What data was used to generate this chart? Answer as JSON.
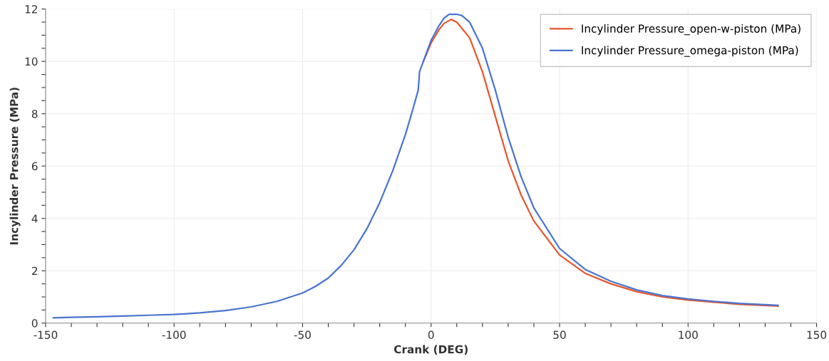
{
  "chart_data": {
    "type": "line",
    "xlabel": "Crank (DEG)",
    "ylabel": "Incylinder Pressure (MPa)",
    "xlim": [
      -150,
      150
    ],
    "ylim": [
      0,
      12
    ],
    "xticks": [
      -150,
      {
        "value": -140,
        "label": null
      },
      {
        "value": -130,
        "label": null
      },
      {
        "value": -120,
        "label": null
      },
      {
        "value": -110,
        "label": null
      },
      -100,
      {
        "value": -90,
        "label": null
      },
      {
        "value": -80,
        "label": null
      },
      {
        "value": -70,
        "label": null
      },
      {
        "value": -60,
        "label": null
      },
      -50,
      {
        "value": -40,
        "label": null
      },
      {
        "value": -30,
        "label": null
      },
      {
        "value": -20,
        "label": null
      },
      {
        "value": -10,
        "label": null
      },
      0,
      {
        "value": 10,
        "label": null
      },
      {
        "value": 20,
        "label": null
      },
      {
        "value": 30,
        "label": null
      },
      {
        "value": 40,
        "label": null
      },
      50,
      {
        "value": 60,
        "label": null
      },
      {
        "value": 70,
        "label": null
      },
      {
        "value": 80,
        "label": null
      },
      {
        "value": 90,
        "label": null
      },
      100,
      {
        "value": 110,
        "label": null
      },
      {
        "value": 120,
        "label": null
      },
      {
        "value": 130,
        "label": null
      },
      {
        "value": 140,
        "label": null
      },
      150
    ],
    "yticks": [
      0,
      {
        "value": 0.5,
        "label": null
      },
      {
        "value": 1,
        "label": null
      },
      {
        "value": 1.5,
        "label": null
      },
      2,
      {
        "value": 2.5,
        "label": null
      },
      {
        "value": 3,
        "label": null
      },
      {
        "value": 3.5,
        "label": null
      },
      4,
      {
        "value": 4.5,
        "label": null
      },
      {
        "value": 5,
        "label": null
      },
      {
        "value": 5.5,
        "label": null
      },
      6,
      {
        "value": 6.5,
        "label": null
      },
      {
        "value": 7,
        "label": null
      },
      {
        "value": 7.5,
        "label": null
      },
      8,
      {
        "value": 8.5,
        "label": null
      },
      {
        "value": 9,
        "label": null
      },
      {
        "value": 9.5,
        "label": null
      },
      10,
      {
        "value": 10.5,
        "label": null
      },
      {
        "value": 11,
        "label": null
      },
      {
        "value": 11.5,
        "label": null
      },
      12
    ],
    "grid": true,
    "legend": "top right",
    "marker": "none",
    "line_style": "solid",
    "series": [
      {
        "name": "Incylinder Pressure_open-w-piston (MPa)",
        "color": "#e8562a",
        "x": [
          -3,
          0,
          3,
          5,
          7.8,
          10,
          15,
          20,
          25,
          30,
          35,
          40,
          50,
          60,
          70,
          80,
          90,
          100,
          110,
          120,
          135
        ],
        "values": [
          10.0,
          10.7,
          11.2,
          11.45,
          11.6,
          11.5,
          10.9,
          9.6,
          7.9,
          6.2,
          4.9,
          3.9,
          2.6,
          1.9,
          1.5,
          1.2,
          1.0,
          0.88,
          0.8,
          0.72,
          0.65
        ]
      },
      {
        "name": "Incylinder Pressure_omega-piston (MPa)",
        "color": "#4a74d0",
        "x": [
          -147,
          -140,
          -130,
          -120,
          -110,
          -100,
          -90,
          -80,
          -70,
          -60,
          -50,
          -45,
          -40,
          -35,
          -30,
          -25,
          -20,
          -15,
          -10,
          -7,
          -5,
          -4.5,
          -3,
          0,
          3,
          5,
          7,
          10,
          12,
          15,
          20,
          25,
          30,
          35,
          40,
          50,
          60,
          70,
          80,
          90,
          100,
          110,
          120,
          135
        ],
        "values": [
          0.2,
          0.22,
          0.24,
          0.27,
          0.3,
          0.33,
          0.39,
          0.48,
          0.62,
          0.83,
          1.15,
          1.4,
          1.72,
          2.2,
          2.8,
          3.6,
          4.6,
          5.8,
          7.2,
          8.2,
          8.9,
          9.6,
          10.0,
          10.8,
          11.35,
          11.65,
          11.8,
          11.8,
          11.75,
          11.5,
          10.5,
          8.9,
          7.1,
          5.6,
          4.4,
          2.85,
          2.05,
          1.6,
          1.27,
          1.05,
          0.92,
          0.83,
          0.75,
          0.68
        ]
      }
    ]
  }
}
